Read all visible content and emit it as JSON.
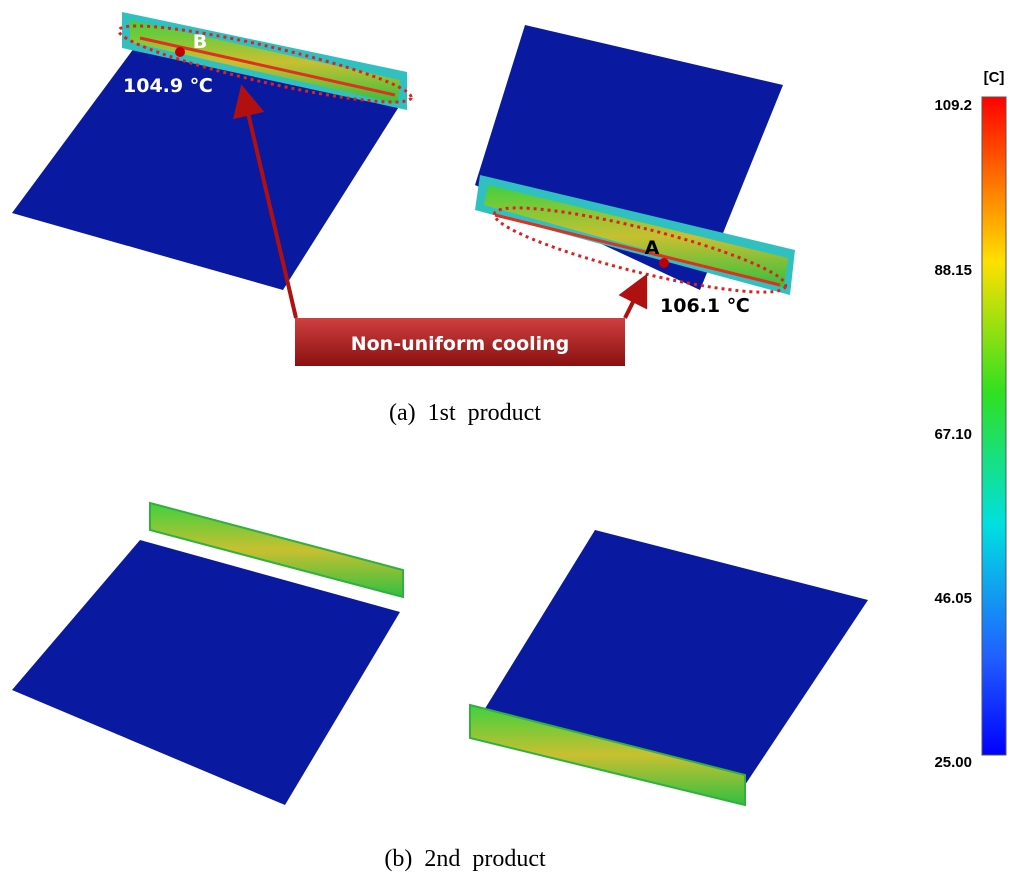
{
  "colorbar": {
    "unit": "[C]",
    "ticks": [
      "109.2",
      "88.15",
      "67.10",
      "46.05",
      "25.00"
    ]
  },
  "panels": [
    {
      "caption": "(a)  1st  product",
      "points": [
        {
          "label": "B",
          "temperature": "104.9 ℃"
        },
        {
          "label": "A",
          "temperature": "106.1 ℃"
        }
      ],
      "callout": "Non-uniform cooling"
    },
    {
      "caption": "(b)  2nd  product"
    }
  ]
}
